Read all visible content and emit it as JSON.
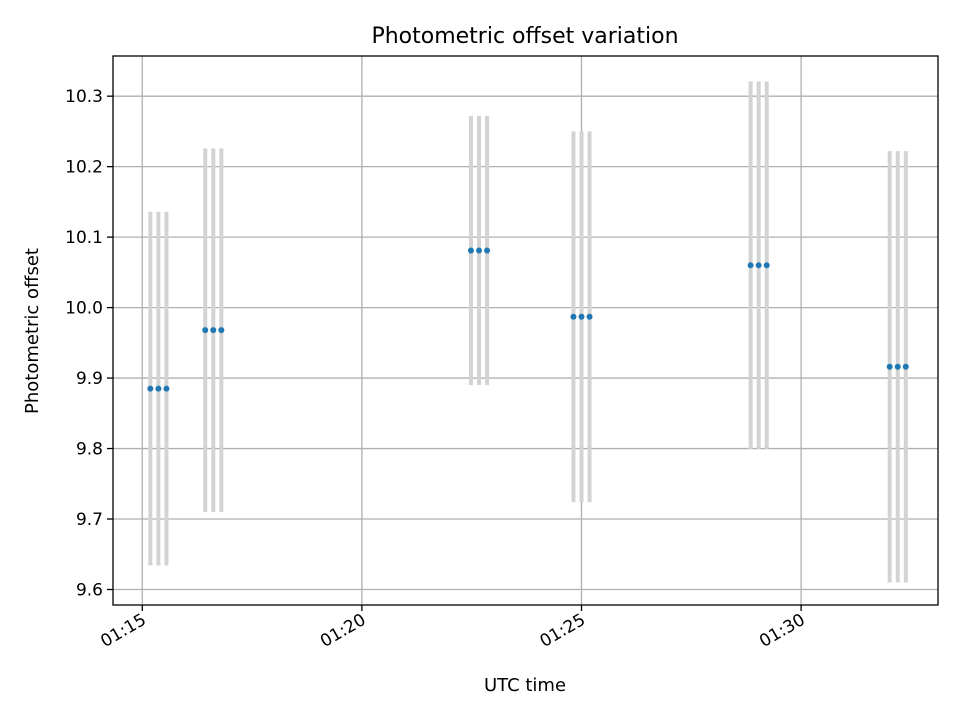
{
  "chart_data": {
    "type": "scatter",
    "title": "Photometric offset variation",
    "xlabel": "UTC time",
    "ylabel": "Photometric offset",
    "grid": true,
    "xlim": [
      "01:14:20",
      "01:33:07"
    ],
    "ylim": [
      9.578,
      10.357
    ],
    "xticks": [
      "01:15",
      "01:20",
      "01:25",
      "01:30"
    ],
    "yticks": [
      "9.6",
      "9.7",
      "9.8",
      "9.9",
      "10.0",
      "10.1",
      "10.2",
      "10.3"
    ],
    "colors": {
      "points": "#1f77b4",
      "errorbars": "#d3d3d3"
    },
    "points": [
      {
        "x": "01:15:11",
        "y": 9.885,
        "yerr": 0.251
      },
      {
        "x": "01:15:22",
        "y": 9.885,
        "yerr": 0.251
      },
      {
        "x": "01:15:33",
        "y": 9.885,
        "yerr": 0.251
      },
      {
        "x": "01:16:26",
        "y": 9.968,
        "yerr": 0.258
      },
      {
        "x": "01:16:37",
        "y": 9.968,
        "yerr": 0.258
      },
      {
        "x": "01:16:48",
        "y": 9.968,
        "yerr": 0.258
      },
      {
        "x": "01:22:29",
        "y": 10.081,
        "yerr": 0.191
      },
      {
        "x": "01:22:40",
        "y": 10.081,
        "yerr": 0.191
      },
      {
        "x": "01:22:51",
        "y": 10.081,
        "yerr": 0.191
      },
      {
        "x": "01:24:49",
        "y": 9.987,
        "yerr": 0.263
      },
      {
        "x": "01:25:00",
        "y": 9.987,
        "yerr": 0.263
      },
      {
        "x": "01:25:11",
        "y": 9.987,
        "yerr": 0.263
      },
      {
        "x": "01:28:51",
        "y": 10.06,
        "yerr": 0.261
      },
      {
        "x": "01:29:02",
        "y": 10.06,
        "yerr": 0.261
      },
      {
        "x": "01:29:13",
        "y": 10.06,
        "yerr": 0.261
      },
      {
        "x": "01:32:01",
        "y": 9.916,
        "yerr": 0.306
      },
      {
        "x": "01:32:12",
        "y": 9.916,
        "yerr": 0.306
      },
      {
        "x": "01:32:23",
        "y": 9.916,
        "yerr": 0.306
      }
    ]
  }
}
